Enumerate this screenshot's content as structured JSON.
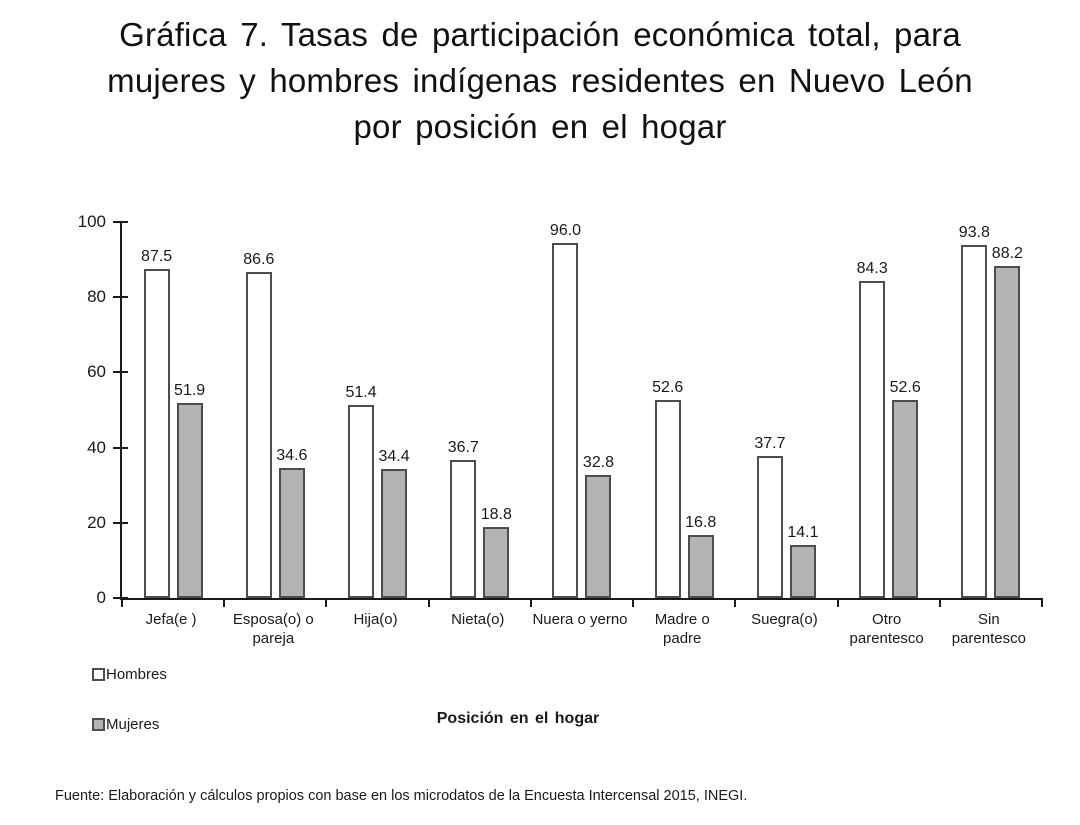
{
  "title_lines": [
    "Gráfica 7. Tasas de participación económica total, para",
    "mujeres y hombres indígenas residentes en Nuevo León",
    "por posición en el hogar"
  ],
  "footer": "Fuente: Elaboración y cálculos propios con base en los microdatos de la Encuesta Intercensal 2015, INEGI.",
  "chart_data": {
    "type": "bar",
    "title": "Gráfica 7. Tasas de participación económica total, para mujeres y hombres indígenas residentes en Nuevo León por posición en el hogar",
    "categories": [
      "Jefa(e )",
      "Esposa(o) o pareja",
      "Hija(o)",
      "Nieta(o)",
      "Nuera o yerno",
      "Madre o padre",
      "Suegra(o)",
      "Otro parentesco",
      "Sin parentesco"
    ],
    "category_lines": [
      [
        "Jefa(e )"
      ],
      [
        "Esposa(o) o",
        "pareja"
      ],
      [
        "Hija(o)"
      ],
      [
        "Nieta(o)"
      ],
      [
        "Nuera o yerno"
      ],
      [
        "Madre o",
        "padre"
      ],
      [
        "Suegra(o)"
      ],
      [
        "Otro",
        "parentesco"
      ],
      [
        "Sin",
        "parentesco"
      ]
    ],
    "series": [
      {
        "name": "Hombres",
        "fill": "#ffffff",
        "values": [
          87.5,
          86.6,
          51.4,
          36.7,
          96.0,
          52.6,
          37.7,
          84.3,
          93.8
        ]
      },
      {
        "name": "Mujeres",
        "fill": "#b3b3b3",
        "values": [
          51.9,
          34.6,
          34.4,
          18.8,
          32.8,
          16.8,
          14.1,
          52.6,
          88.2
        ]
      }
    ],
    "xlabel": "Posición en el hogar",
    "ylabel": "",
    "ylim": [
      0,
      100
    ],
    "yticks": [
      0,
      20,
      40,
      60,
      80,
      100
    ],
    "grid": false,
    "legend_position": "bottom-left",
    "bar_border_color": "#4d4d4d",
    "axis_color": "#1a1a1a"
  }
}
